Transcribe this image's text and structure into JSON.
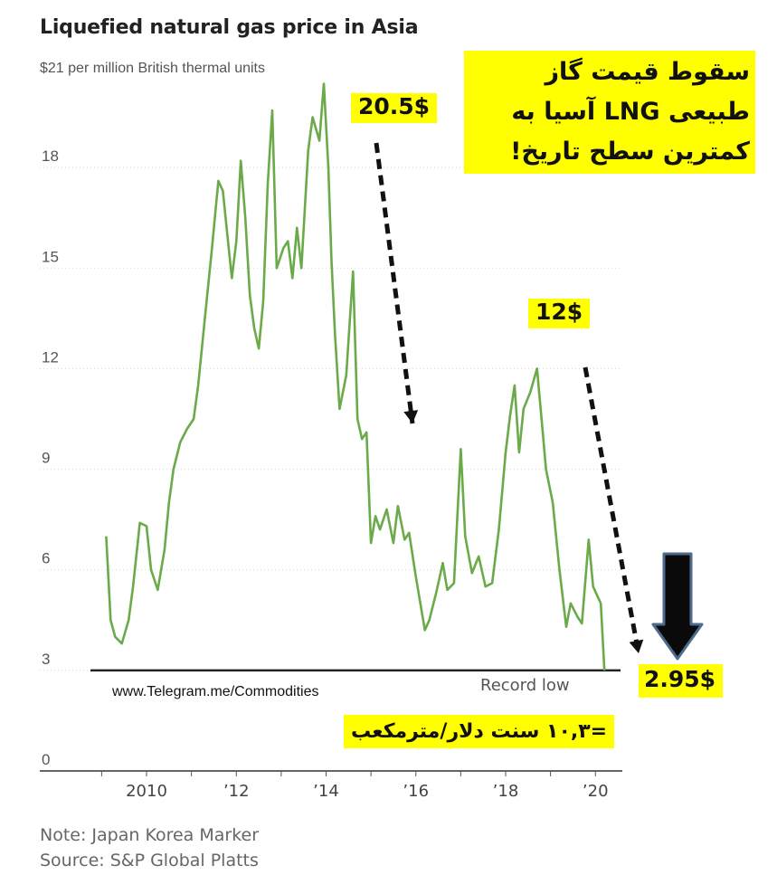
{
  "title": "Liquefied natural gas price in Asia",
  "subtitle": "$21 per million British thermal units",
  "note": "Note: Japan Korea Marker",
  "source": "Source: S&P Global Platts",
  "watermark": "www.Telegram.me/Commodities",
  "record_low_label": "Record low",
  "callouts": {
    "persian_headline": "سقوط قیمت گاز طبیعی LNG آسیا به کمترین سطح تاریخ!",
    "peak_price": "20.5$",
    "mid_price": "12$",
    "low_price": "2.95$",
    "conversion": "=۱۰,۳ سنت دلار/مترمکعب"
  },
  "colors": {
    "line": "#6aaa48",
    "highlight": "#ffff00",
    "down_arrow": "#0a0a0a",
    "down_arrow_outline": "#4d6b8c"
  },
  "chart_data": {
    "type": "line",
    "title": "Liquefied natural gas price in Asia",
    "ylabel": "$21 per million British thermal units",
    "xlabel": "",
    "x_ticks": [
      {
        "value": 2010,
        "label": "2010"
      },
      {
        "value": 2012,
        "label": "’12"
      },
      {
        "value": 2014,
        "label": "’14"
      },
      {
        "value": 2016,
        "label": "’16"
      },
      {
        "value": 2018,
        "label": "’18"
      },
      {
        "value": 2020,
        "label": "’20"
      }
    ],
    "y_ticks": [
      0,
      3,
      6,
      9,
      12,
      15,
      18
    ],
    "xlim": [
      2008.75,
      2020.6
    ],
    "ylim": [
      0,
      21
    ],
    "grid": "horizontal",
    "series": [
      {
        "x": [
          2009.1,
          2009.2,
          2009.3,
          2009.45,
          2009.6,
          2009.7,
          2009.85,
          2010.0,
          2010.1,
          2010.25,
          2010.4,
          2010.5,
          2010.6,
          2010.75,
          2010.9,
          2011.05,
          2011.15,
          2011.3,
          2011.45,
          2011.6,
          2011.7,
          2011.8,
          2011.9,
          2012.0,
          2012.1,
          2012.2,
          2012.3,
          2012.4,
          2012.5,
          2012.6,
          2012.7,
          2012.8,
          2012.9,
          2013.05,
          2013.15,
          2013.25,
          2013.35,
          2013.45,
          2013.6,
          2013.7,
          2013.85,
          2013.95,
          2014.05,
          2014.12,
          2014.2,
          2014.3,
          2014.45,
          2014.6,
          2014.7,
          2014.8,
          2014.9,
          2015.0,
          2015.1,
          2015.2,
          2015.35,
          2015.5,
          2015.6,
          2015.75,
          2015.85,
          2016.0,
          2016.1,
          2016.2,
          2016.3,
          2016.45,
          2016.6,
          2016.7,
          2016.85,
          2017.0,
          2017.1,
          2017.25,
          2017.4,
          2017.55,
          2017.7,
          2017.85,
          2018.0,
          2018.1,
          2018.2,
          2018.3,
          2018.4,
          2018.55,
          2018.7,
          2018.8,
          2018.9,
          2019.05,
          2019.2,
          2019.35,
          2019.45,
          2019.6,
          2019.7,
          2019.85,
          2019.95,
          2020.05,
          2020.12,
          2020.2
        ],
        "y": [
          7.0,
          4.5,
          4.0,
          3.8,
          4.5,
          5.5,
          7.4,
          7.3,
          6.0,
          5.4,
          6.6,
          8.0,
          9.0,
          9.8,
          10.2,
          10.5,
          11.5,
          13.5,
          15.5,
          17.6,
          17.3,
          16.0,
          14.7,
          15.8,
          18.2,
          16.5,
          14.2,
          13.2,
          12.6,
          14.0,
          17.5,
          19.7,
          15.0,
          15.6,
          15.8,
          14.7,
          16.2,
          15.0,
          18.5,
          19.5,
          18.8,
          20.5,
          18.0,
          15.2,
          13.0,
          10.8,
          11.8,
          14.9,
          10.5,
          9.9,
          10.1,
          6.8,
          7.6,
          7.2,
          7.8,
          6.8,
          7.9,
          6.9,
          7.1,
          5.8,
          5.0,
          4.2,
          4.5,
          5.3,
          6.2,
          5.4,
          5.6,
          9.6,
          7.0,
          5.9,
          6.4,
          5.5,
          5.6,
          7.2,
          9.5,
          10.6,
          11.5,
          9.5,
          10.8,
          11.3,
          12.0,
          10.5,
          9.0,
          8.0,
          6.0,
          4.3,
          5.0,
          4.6,
          4.4,
          6.9,
          5.5,
          5.2,
          5.0,
          3.0
        ]
      }
    ],
    "annotations": [
      "Record low"
    ]
  }
}
